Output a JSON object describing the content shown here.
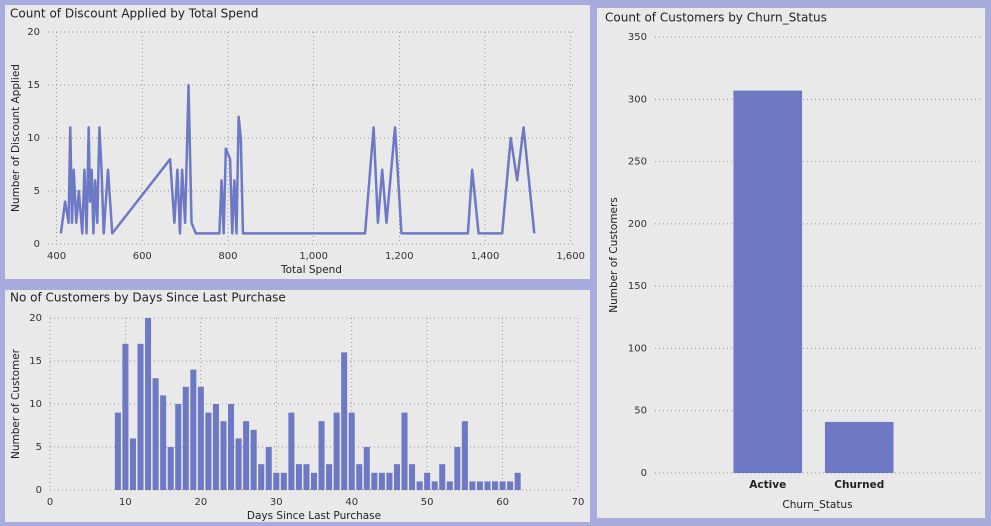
{
  "chart_data": [
    {
      "type": "line",
      "title": "Count of Discount Applied by Total Spend",
      "x_label": "Total Spend",
      "y_label": "Number of Discount Applied",
      "x": [
        410,
        420,
        428,
        432,
        436,
        440,
        446,
        452,
        460,
        465,
        470,
        475,
        478,
        482,
        486,
        490,
        495,
        500,
        505,
        510,
        520,
        530,
        665,
        675,
        682,
        688,
        693,
        700,
        708,
        715,
        725,
        780,
        785,
        790,
        795,
        805,
        810,
        815,
        820,
        825,
        830,
        835,
        1120,
        1140,
        1150,
        1160,
        1170,
        1190,
        1205,
        1360,
        1370,
        1385,
        1440,
        1460,
        1475,
        1490,
        1515
      ],
      "values": [
        1,
        4,
        2,
        11,
        2,
        7,
        2,
        5,
        1,
        7,
        1,
        11,
        4,
        7,
        1,
        6,
        2,
        11,
        7,
        1,
        7,
        1,
        8,
        2,
        7,
        1,
        7,
        2,
        15,
        2,
        1,
        1,
        6,
        1,
        9,
        8,
        1,
        6,
        1,
        12,
        10,
        1,
        1,
        11,
        2,
        7,
        2,
        11,
        1,
        1,
        7,
        1,
        1,
        10,
        6,
        11,
        1
      ],
      "color": "#6e79c6",
      "xlim": [
        380,
        1610
      ],
      "xticks": [
        400,
        600,
        800,
        {
          "value": 1000,
          "label": "1,000"
        },
        {
          "value": 1200,
          "label": "1,200"
        },
        {
          "value": 1400,
          "label": "1,400"
        },
        {
          "value": 1600,
          "label": "1,600"
        }
      ],
      "ylim": [
        0,
        20
      ],
      "yticks": [
        0,
        5,
        10,
        15,
        20
      ],
      "grid": true
    },
    {
      "type": "histogram",
      "title": "No of Customers by Days Since Last Purchase",
      "x_label": "Days Since Last Purchase",
      "y_label": "Number of Customer",
      "x": [
        9,
        10,
        11,
        12,
        13,
        14,
        15,
        16,
        17,
        18,
        19,
        20,
        21,
        22,
        23,
        24,
        25,
        26,
        27,
        28,
        29,
        30,
        31,
        32,
        33,
        34,
        35,
        36,
        37,
        38,
        39,
        40,
        41,
        42,
        43,
        44,
        45,
        46,
        47,
        48,
        49,
        50,
        51,
        52,
        53,
        54,
        55,
        56,
        57,
        58,
        59,
        60,
        61,
        62
      ],
      "values": [
        9,
        17,
        6,
        17,
        20,
        13,
        11,
        5,
        10,
        12,
        14,
        12,
        9,
        10,
        8,
        10,
        6,
        8,
        7,
        3,
        5,
        2,
        2,
        9,
        3,
        3,
        2,
        8,
        3,
        9,
        16,
        9,
        3,
        5,
        2,
        2,
        2,
        3,
        9,
        3,
        1,
        2,
        1,
        3,
        1,
        5,
        8,
        1,
        1,
        1,
        1,
        1,
        1,
        2
      ],
      "color": "#6e79c6",
      "xlim": [
        0,
        70
      ],
      "xticks": [
        0,
        10,
        20,
        30,
        40,
        50,
        60,
        70
      ],
      "ylim": [
        0,
        20
      ],
      "yticks": [
        0,
        5,
        10,
        15,
        20
      ],
      "grid": true
    },
    {
      "type": "bar",
      "title": "Count of Customers by Churn_Status",
      "x_label": "Churn_Status",
      "y_label": "Number of Customers",
      "categories": [
        "Active",
        "Churned"
      ],
      "values": [
        307,
        41
      ],
      "color": "#6e79c6",
      "ylim": [
        0,
        350
      ],
      "yticks": [
        0,
        50,
        100,
        150,
        200,
        250,
        300,
        350
      ],
      "grid": true
    }
  ]
}
